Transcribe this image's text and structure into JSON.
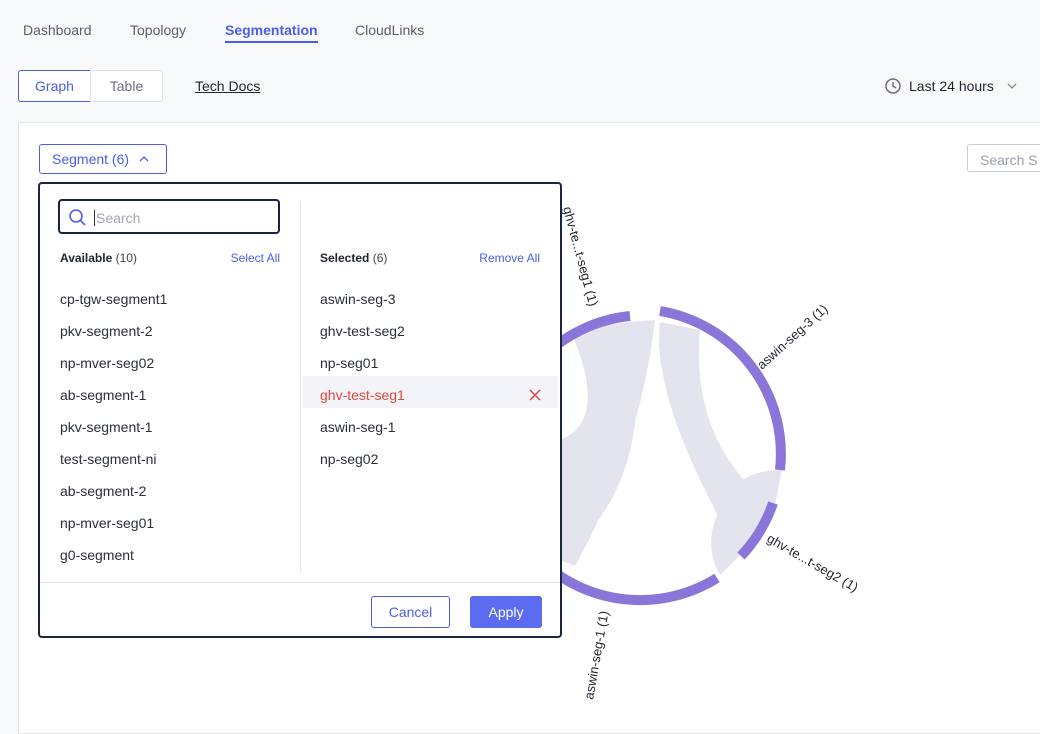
{
  "tabs": [
    "Dashboard",
    "Topology",
    "Segmentation",
    "CloudLinks"
  ],
  "view_toggle": [
    "Graph",
    "Table"
  ],
  "tech_docs": "Tech Docs",
  "time_range": "Last 24 hours",
  "segment_button": "Segment (6)",
  "search_right": "Search S",
  "dropdown": {
    "search_placeholder": "Search",
    "available": {
      "label": "Available",
      "count": "(10)",
      "action": "Select All",
      "items": [
        "cp-tgw-segment1",
        "pkv-segment-2",
        "np-mver-seg02",
        "ab-segment-1",
        "pkv-segment-1",
        "test-segment-ni",
        "ab-segment-2",
        "np-mver-seg01",
        "g0-segment"
      ]
    },
    "selected": {
      "label": "Selected",
      "count": "(6)",
      "action": "Remove All",
      "items": [
        "aswin-seg-3",
        "ghv-test-seg2",
        "np-seg01",
        "ghv-test-seg1",
        "aswin-seg-1",
        "np-seg02"
      ]
    },
    "cancel": "Cancel",
    "apply": "Apply"
  },
  "chord_labels": [
    "ghv-te...t-seg1 (1)",
    "aswin-seg-3 (1)",
    "ghv-te...t-seg2 (1)",
    "aswin-seg-1 (1)"
  ]
}
